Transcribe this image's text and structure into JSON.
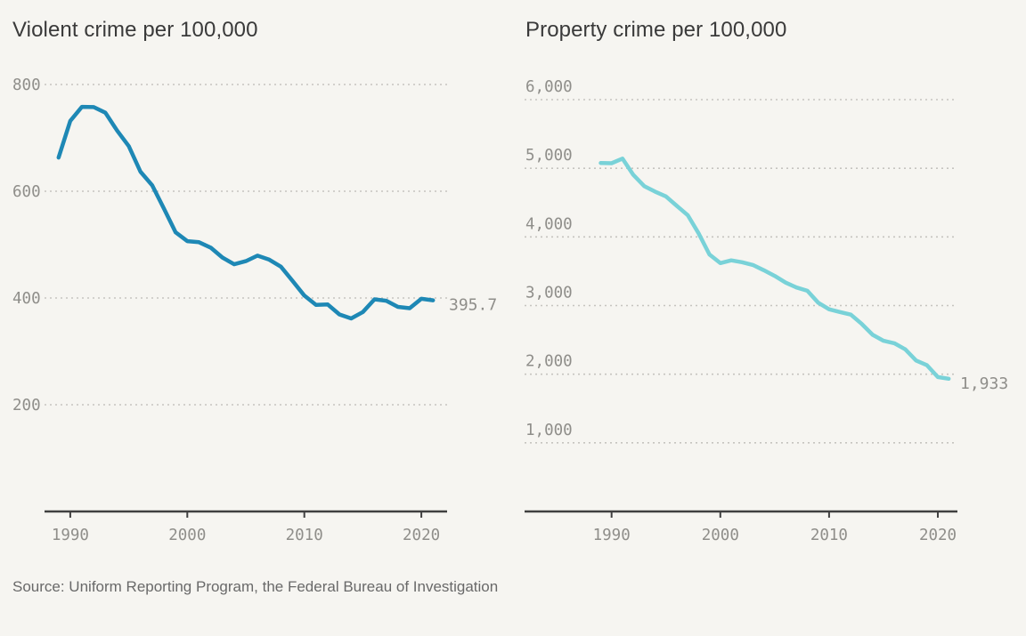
{
  "page": {
    "background_color": "#f6f5f1"
  },
  "source_note": "Source: Uniform Reporting Program, the Federal Bureau of Investigation",
  "chart_data": [
    {
      "type": "line",
      "title": "Violent crime per 100,000",
      "series_name": "violent-crime-rate",
      "line_color": "#1e88b5",
      "end_label": "395.7",
      "x": [
        1989,
        1990,
        1991,
        1992,
        1993,
        1994,
        1995,
        1996,
        1997,
        1998,
        1999,
        2000,
        2001,
        2002,
        2003,
        2004,
        2005,
        2006,
        2007,
        2008,
        2009,
        2010,
        2011,
        2012,
        2013,
        2014,
        2015,
        2016,
        2017,
        2018,
        2019,
        2020,
        2021
      ],
      "values": [
        663.1,
        731.8,
        758.2,
        757.7,
        747.1,
        713.6,
        684.5,
        636.6,
        611.0,
        567.6,
        523.0,
        506.5,
        504.5,
        494.4,
        475.8,
        463.2,
        469.0,
        479.3,
        471.8,
        458.6,
        431.9,
        404.5,
        387.1,
        387.8,
        369.1,
        361.6,
        373.7,
        397.5,
        394.9,
        383.4,
        380.8,
        398.5,
        395.7
      ],
      "y_ticks": [
        {
          "value": 800,
          "label": "800"
        },
        {
          "value": 600,
          "label": "600"
        },
        {
          "value": 400,
          "label": "400"
        },
        {
          "value": 200,
          "label": "200"
        }
      ],
      "x_ticks": [
        {
          "value": 1990,
          "label": "1990"
        },
        {
          "value": 2000,
          "label": "2000"
        },
        {
          "value": 2010,
          "label": "2010"
        },
        {
          "value": 2020,
          "label": "2020"
        }
      ],
      "xlim": [
        1987.8,
        2022.2
      ],
      "ylim": [
        0,
        860
      ],
      "grid": "horizontal dotted",
      "legend": "none"
    },
    {
      "type": "line",
      "title": "Property crime per 100,000",
      "series_name": "property-crime-rate",
      "line_color": "#79d2d8",
      "end_label": "1,933",
      "x": [
        1989,
        1990,
        1991,
        1992,
        1993,
        1994,
        1995,
        1996,
        1997,
        1998,
        1999,
        2000,
        2001,
        2002,
        2003,
        2004,
        2005,
        2006,
        2007,
        2008,
        2009,
        2010,
        2011,
        2012,
        2013,
        2014,
        2015,
        2016,
        2017,
        2018,
        2019,
        2020,
        2021
      ],
      "values": [
        5077.9,
        5073.1,
        5140.2,
        4903.7,
        4740.0,
        4660.2,
        4590.5,
        4451.0,
        4316.3,
        4052.5,
        3743.6,
        3618.3,
        3658.1,
        3630.6,
        3591.2,
        3514.1,
        3431.5,
        3334.5,
        3263.5,
        3214.6,
        3041.3,
        2945.9,
        2905.4,
        2868.0,
        2733.6,
        2574.1,
        2487.0,
        2450.7,
        2362.2,
        2199.5,
        2130.6,
        1958.2,
        1933.0
      ],
      "y_ticks": [
        {
          "value": 6000,
          "label": "6,000"
        },
        {
          "value": 5000,
          "label": "5,000"
        },
        {
          "value": 4000,
          "label": "4,000"
        },
        {
          "value": 3000,
          "label": "3,000"
        },
        {
          "value": 2000,
          "label": "2,000"
        },
        {
          "value": 1000,
          "label": "1,000"
        }
      ],
      "x_ticks": [
        {
          "value": 1990,
          "label": "1990"
        },
        {
          "value": 2000,
          "label": "2000"
        },
        {
          "value": 2010,
          "label": "2010"
        },
        {
          "value": 2020,
          "label": "2020"
        }
      ],
      "xlim": [
        1982.0,
        2021.8
      ],
      "ylim": [
        0,
        6200
      ],
      "grid": "horizontal dotted",
      "legend": "none"
    }
  ],
  "colors": {
    "background": "#f6f5f1",
    "gridline": "#c5c4bf",
    "axis": "#404040",
    "tick_label": "#8f8e8a",
    "end_label": "#8a8a8a",
    "title": "#3a3a3a",
    "source": "#696969"
  }
}
